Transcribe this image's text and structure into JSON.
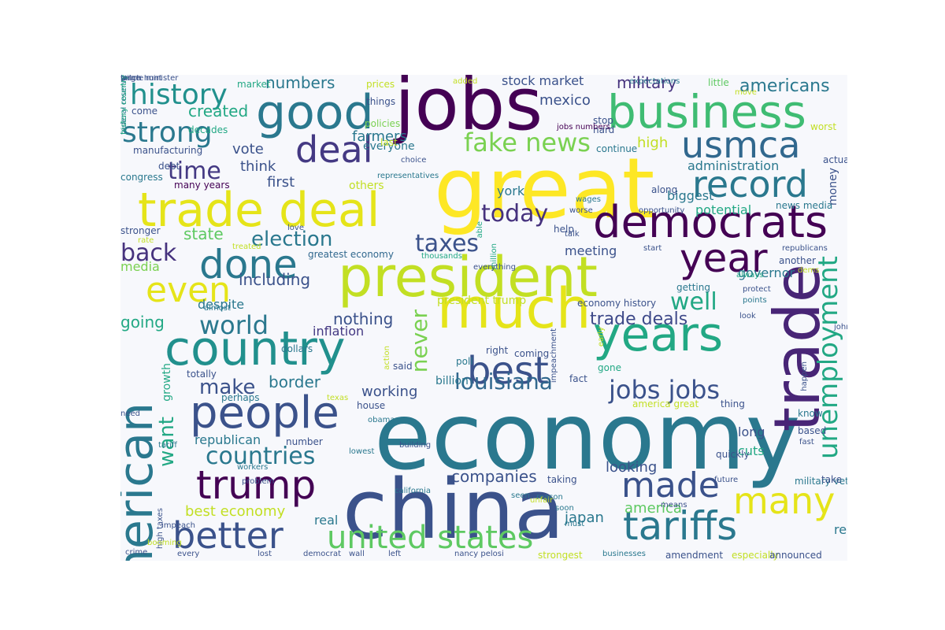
{
  "wordcloud": {
    "background": "#f7f8fc",
    "palette": "viridis",
    "words": [
      {
        "text": "economy",
        "color": "#2a788e",
        "vertical": false
      },
      {
        "text": "china",
        "color": "#3b528b",
        "vertical": false
      },
      {
        "text": "great",
        "color": "#fde725",
        "vertical": false
      },
      {
        "text": "jobs",
        "color": "#440154",
        "vertical": false
      },
      {
        "text": "president",
        "color": "#c2df23",
        "vertical": false
      },
      {
        "text": "trade",
        "color": "#482576",
        "vertical": true
      },
      {
        "text": "business",
        "color": "#3fbc73",
        "vertical": false
      },
      {
        "text": "trade deal",
        "color": "#e5e419",
        "vertical": false
      },
      {
        "text": "democrats",
        "color": "#440154",
        "vertical": false
      },
      {
        "text": "much",
        "color": "#e5e419",
        "vertical": false
      },
      {
        "text": "years",
        "color": "#22a884",
        "vertical": false
      },
      {
        "text": "country",
        "color": "#21908d",
        "vertical": false
      },
      {
        "text": "people",
        "color": "#3b528b",
        "vertical": false
      },
      {
        "text": "american",
        "color": "#2a788e",
        "vertical": true
      },
      {
        "text": "good",
        "color": "#2a788e",
        "vertical": false
      },
      {
        "text": "usmca",
        "color": "#31688e",
        "vertical": false
      },
      {
        "text": "deal",
        "color": "#443983",
        "vertical": false
      },
      {
        "text": "record",
        "color": "#2a788e",
        "vertical": false
      },
      {
        "text": "year",
        "color": "#440154",
        "vertical": false
      },
      {
        "text": "done",
        "color": "#2a788e",
        "vertical": false
      },
      {
        "text": "best",
        "color": "#3b528b",
        "vertical": false
      },
      {
        "text": "many",
        "color": "#e5e419",
        "vertical": false
      },
      {
        "text": "tariffs",
        "color": "#2a788e",
        "vertical": false
      },
      {
        "text": "trump",
        "color": "#440154",
        "vertical": false
      },
      {
        "text": "better",
        "color": "#3b528b",
        "vertical": false
      },
      {
        "text": "united states",
        "color": "#5ec962",
        "vertical": false
      },
      {
        "text": "made",
        "color": "#3b528b",
        "vertical": false
      },
      {
        "text": "unemployment",
        "color": "#22a884",
        "vertical": true
      },
      {
        "text": "even",
        "color": "#e5e419",
        "vertical": false
      },
      {
        "text": "history",
        "color": "#21908d",
        "vertical": false
      },
      {
        "text": "strong",
        "color": "#2a788e",
        "vertical": false
      },
      {
        "text": "fake news",
        "color": "#7ad151",
        "vertical": false
      },
      {
        "text": "time",
        "color": "#443983",
        "vertical": false
      },
      {
        "text": "today",
        "color": "#46327e",
        "vertical": false
      },
      {
        "text": "taxes",
        "color": "#3b528b",
        "vertical": false
      },
      {
        "text": "election",
        "color": "#2a788e",
        "vertical": false
      },
      {
        "text": "back",
        "color": "#46327e",
        "vertical": false
      },
      {
        "text": "world",
        "color": "#2a788e",
        "vertical": false
      },
      {
        "text": "well",
        "color": "#22a884",
        "vertical": false
      },
      {
        "text": "jobs jobs",
        "color": "#3b528b",
        "vertical": false
      },
      {
        "text": "louisiana",
        "color": "#31688e",
        "vertical": false
      },
      {
        "text": "countries",
        "color": "#2a788e",
        "vertical": false
      },
      {
        "text": "make",
        "color": "#3b528b",
        "vertical": false
      },
      {
        "text": "trade deals",
        "color": "#3e4989",
        "vertical": false
      },
      {
        "text": "want",
        "color": "#22a884",
        "vertical": true
      },
      {
        "text": "never",
        "color": "#7ad151",
        "vertical": true
      },
      {
        "text": "americans",
        "color": "#2a788e",
        "vertical": false
      },
      {
        "text": "military",
        "color": "#46327e",
        "vertical": false
      },
      {
        "text": "stock market",
        "color": "#3b528b",
        "vertical": false
      },
      {
        "text": "mexico",
        "color": "#3b528b",
        "vertical": false
      },
      {
        "text": "numbers",
        "color": "#2a788e",
        "vertical": false
      },
      {
        "text": "created",
        "color": "#22a884",
        "vertical": false
      },
      {
        "text": "farmers",
        "color": "#2a788e",
        "vertical": false
      },
      {
        "text": "vote",
        "color": "#3b528b",
        "vertical": false
      },
      {
        "text": "think",
        "color": "#3b528b",
        "vertical": false
      },
      {
        "text": "first",
        "color": "#3b528b",
        "vertical": false
      },
      {
        "text": "others",
        "color": "#c2df23",
        "vertical": false
      },
      {
        "text": "everyone",
        "color": "#2a788e",
        "vertical": false
      },
      {
        "text": "high",
        "color": "#c2df23",
        "vertical": false
      },
      {
        "text": "administration",
        "color": "#2a788e",
        "vertical": false
      },
      {
        "text": "state",
        "color": "#5ec962",
        "vertical": false
      },
      {
        "text": "including",
        "color": "#3b528b",
        "vertical": false
      },
      {
        "text": "media",
        "color": "#7ad151",
        "vertical": false
      },
      {
        "text": "going",
        "color": "#22a884",
        "vertical": false
      },
      {
        "text": "nothing",
        "color": "#3b528b",
        "vertical": false
      },
      {
        "text": "inflation",
        "color": "#443983",
        "vertical": false
      },
      {
        "text": "border",
        "color": "#2a788e",
        "vertical": false
      },
      {
        "text": "working",
        "color": "#3b528b",
        "vertical": false
      },
      {
        "text": "companies",
        "color": "#3b528b",
        "vertical": false
      },
      {
        "text": "looking",
        "color": "#3b528b",
        "vertical": false
      },
      {
        "text": "america",
        "color": "#5ec962",
        "vertical": false
      },
      {
        "text": "japan",
        "color": "#2a788e",
        "vertical": false
      },
      {
        "text": "real",
        "color": "#2a788e",
        "vertical": false
      },
      {
        "text": "best economy",
        "color": "#c2df23",
        "vertical": false
      },
      {
        "text": "republican",
        "color": "#2a788e",
        "vertical": false
      },
      {
        "text": "cuts",
        "color": "#22a884",
        "vertical": false
      },
      {
        "text": "long",
        "color": "#3b528b",
        "vertical": false
      },
      {
        "text": "really",
        "color": "#2a788e",
        "vertical": false
      },
      {
        "text": "governor",
        "color": "#2a788e",
        "vertical": false
      },
      {
        "text": "meeting",
        "color": "#3b528b",
        "vertical": false
      },
      {
        "text": "potential",
        "color": "#22a884",
        "vertical": false
      },
      {
        "text": "biggest",
        "color": "#2a788e",
        "vertical": false
      },
      {
        "text": "money",
        "color": "#3b528b",
        "vertical": true
      },
      {
        "text": "york",
        "color": "#2a788e",
        "vertical": false
      },
      {
        "text": "despite",
        "color": "#2a788e",
        "vertical": false
      },
      {
        "text": "president trump",
        "color": "#c2df23",
        "vertical": false
      },
      {
        "text": "economy history",
        "color": "#3b528b",
        "vertical": false
      },
      {
        "text": "growth",
        "color": "#22a884",
        "vertical": true
      },
      {
        "text": "greatest economy",
        "color": "#31688e",
        "vertical": false
      },
      {
        "text": "manufacturing",
        "color": "#3b528b",
        "vertical": false
      },
      {
        "text": "market",
        "color": "#22a884",
        "vertical": false
      },
      {
        "text": "prices",
        "color": "#c2df23",
        "vertical": false
      },
      {
        "text": "things",
        "color": "#3b528b",
        "vertical": false
      },
      {
        "text": "policies",
        "color": "#7ad151",
        "vertical": false
      },
      {
        "text": "added",
        "color": "#c2df23",
        "vertical": false
      },
      {
        "text": "come",
        "color": "#3b528b",
        "vertical": false
      },
      {
        "text": "decades",
        "color": "#22a884",
        "vertical": false
      },
      {
        "text": "debt",
        "color": "#3b528b",
        "vertical": false
      },
      {
        "text": "congress",
        "color": "#2a788e",
        "vertical": false
      },
      {
        "text": "many years",
        "color": "#440154",
        "vertical": false
      },
      {
        "text": "last",
        "color": "#c2df23",
        "vertical": false
      },
      {
        "text": "choice",
        "color": "#3b528b",
        "vertical": false
      },
      {
        "text": "representatives",
        "color": "#2a788e",
        "vertical": false
      },
      {
        "text": "continue",
        "color": "#2a788e",
        "vertical": false
      },
      {
        "text": "stop",
        "color": "#3b528b",
        "vertical": false
      },
      {
        "text": "hard",
        "color": "#3b528b",
        "vertical": false
      },
      {
        "text": "jobs numbers",
        "color": "#440154",
        "vertical": false
      },
      {
        "text": "wages",
        "color": "#2a788e",
        "vertical": false
      },
      {
        "text": "expectations",
        "color": "#2a788e",
        "vertical": false
      },
      {
        "text": "little",
        "color": "#5ec962",
        "vertical": false
      },
      {
        "text": "move",
        "color": "#c2df23",
        "vertical": false
      },
      {
        "text": "worst",
        "color": "#c2df23",
        "vertical": false
      },
      {
        "text": "along",
        "color": "#3b528b",
        "vertical": false
      },
      {
        "text": "opportunity",
        "color": "#3b528b",
        "vertical": false
      },
      {
        "text": "news media",
        "color": "#2a788e",
        "vertical": false
      },
      {
        "text": "stronger",
        "color": "#3b528b",
        "vertical": false
      },
      {
        "text": "rate",
        "color": "#c2df23",
        "vertical": false
      },
      {
        "text": "love",
        "color": "#3b528b",
        "vertical": false
      },
      {
        "text": "treated",
        "color": "#c2df23",
        "vertical": false
      },
      {
        "text": "thousands",
        "color": "#22a884",
        "vertical": false
      },
      {
        "text": "million",
        "color": "#22a884",
        "vertical": true
      },
      {
        "text": "able",
        "color": "#22a884",
        "vertical": true
      },
      {
        "text": "help",
        "color": "#3b528b",
        "vertical": false
      },
      {
        "text": "worse",
        "color": "#3b528b",
        "vertical": false
      },
      {
        "text": "talk",
        "color": "#3b528b",
        "vertical": false
      },
      {
        "text": "start",
        "color": "#3b528b",
        "vertical": false
      },
      {
        "text": "republicans",
        "color": "#3b528b",
        "vertical": false
      },
      {
        "text": "another",
        "color": "#3b528b",
        "vertical": false
      },
      {
        "text": "always",
        "color": "#22a884",
        "vertical": false
      },
      {
        "text": "getting",
        "color": "#2a788e",
        "vertical": false
      },
      {
        "text": "protect",
        "color": "#3b528b",
        "vertical": false
      },
      {
        "text": "points",
        "color": "#2a788e",
        "vertical": false
      },
      {
        "text": "dems",
        "color": "#c2df23",
        "vertical": false
      },
      {
        "text": "look",
        "color": "#3b528b",
        "vertical": false
      },
      {
        "text": "almost",
        "color": "#2a788e",
        "vertical": false
      },
      {
        "text": "dollars",
        "color": "#2a788e",
        "vertical": false
      },
      {
        "text": "action",
        "color": "#c2df23",
        "vertical": true
      },
      {
        "text": "poll",
        "color": "#2a788e",
        "vertical": false
      },
      {
        "text": "right",
        "color": "#3b528b",
        "vertical": false
      },
      {
        "text": "coming",
        "color": "#3b528b",
        "vertical": false
      },
      {
        "text": "impeachment",
        "color": "#3b528b",
        "vertical": true
      },
      {
        "text": "early",
        "color": "#c2df23",
        "vertical": true
      },
      {
        "text": "billion",
        "color": "#2a788e",
        "vertical": false
      },
      {
        "text": "said",
        "color": "#3b528b",
        "vertical": false
      },
      {
        "text": "gone",
        "color": "#22a884",
        "vertical": false
      },
      {
        "text": "fact",
        "color": "#3b528b",
        "vertical": false
      },
      {
        "text": "totally",
        "color": "#3b528b",
        "vertical": false
      },
      {
        "text": "perhaps",
        "color": "#2a788e",
        "vertical": false
      },
      {
        "text": "texas",
        "color": "#c2df23",
        "vertical": false
      },
      {
        "text": "house",
        "color": "#3b528b",
        "vertical": false
      },
      {
        "text": "america great",
        "color": "#c2df23",
        "vertical": false
      },
      {
        "text": "thing",
        "color": "#3b528b",
        "vertical": false
      },
      {
        "text": "know",
        "color": "#2a788e",
        "vertical": false
      },
      {
        "text": "based",
        "color": "#3b528b",
        "vertical": false
      },
      {
        "text": "need",
        "color": "#3b528b",
        "vertical": false
      },
      {
        "text": "obama",
        "color": "#2a788e",
        "vertical": false
      },
      {
        "text": "tariff",
        "color": "#2a788e",
        "vertical": false
      },
      {
        "text": "lowest",
        "color": "#2a788e",
        "vertical": false
      },
      {
        "text": "number",
        "color": "#3b528b",
        "vertical": false
      },
      {
        "text": "building",
        "color": "#3b528b",
        "vertical": false
      },
      {
        "text": "quickly",
        "color": "#3b528b",
        "vertical": false
      },
      {
        "text": "fast",
        "color": "#3b528b",
        "vertical": false
      },
      {
        "text": "workers",
        "color": "#2a788e",
        "vertical": false
      },
      {
        "text": "problem",
        "color": "#3b528b",
        "vertical": false
      },
      {
        "text": "taking",
        "color": "#3b528b",
        "vertical": false
      },
      {
        "text": "future",
        "color": "#3b528b",
        "vertical": false
      },
      {
        "text": "military vets",
        "color": "#2a788e",
        "vertical": false
      },
      {
        "text": "california",
        "color": "#2a788e",
        "vertical": false
      },
      {
        "text": "seen",
        "color": "#2a788e",
        "vertical": false
      },
      {
        "text": "reason",
        "color": "#2a788e",
        "vertical": false
      },
      {
        "text": "take",
        "color": "#3b528b",
        "vertical": false
      },
      {
        "text": "happen",
        "color": "#3b528b",
        "vertical": true
      },
      {
        "text": "soon",
        "color": "#2a788e",
        "vertical": false
      },
      {
        "text": "means",
        "color": "#3b528b",
        "vertical": false
      },
      {
        "text": "unfair",
        "color": "#c2df23",
        "vertical": false
      },
      {
        "text": "must",
        "color": "#2a788e",
        "vertical": false
      },
      {
        "text": "high taxes",
        "color": "#3b528b",
        "vertical": true
      },
      {
        "text": "impeach",
        "color": "#3b528b",
        "vertical": false
      },
      {
        "text": "booming",
        "color": "#c2df23",
        "vertical": false
      },
      {
        "text": "crime",
        "color": "#3b528b",
        "vertical": false
      },
      {
        "text": "every",
        "color": "#3b528b",
        "vertical": false
      },
      {
        "text": "lost",
        "color": "#3b528b",
        "vertical": false
      },
      {
        "text": "democrat",
        "color": "#3b528b",
        "vertical": false
      },
      {
        "text": "wall",
        "color": "#3b528b",
        "vertical": false
      },
      {
        "text": "left",
        "color": "#3b528b",
        "vertical": false
      },
      {
        "text": "nancy pelosi",
        "color": "#3b528b",
        "vertical": false
      },
      {
        "text": "strongest",
        "color": "#c2df23",
        "vertical": false
      },
      {
        "text": "businesses",
        "color": "#2a788e",
        "vertical": false
      },
      {
        "text": "amendment",
        "color": "#3b528b",
        "vertical": false
      },
      {
        "text": "especially",
        "color": "#c2df23",
        "vertical": false
      },
      {
        "text": "announced",
        "color": "#3b528b",
        "vertical": false
      },
      {
        "text": "actually",
        "color": "#3b528b",
        "vertical": false
      },
      {
        "text": "john edwards",
        "color": "#3b528b",
        "vertical": false
      },
      {
        "text": "everything",
        "color": "#3b528b",
        "vertical": false
      },
      {
        "text": "witch hunt",
        "color": "#3b528b",
        "vertical": false
      },
      {
        "text": "prime minister",
        "color": "#3b528b",
        "vertical": false
      },
      {
        "text": "federal reserve",
        "color": "#2a788e",
        "vertical": true
      },
      {
        "text": "history country",
        "color": "#22a884",
        "vertical": true
      },
      {
        "text": "large",
        "color": "#3b528b",
        "vertical": false
      }
    ]
  }
}
